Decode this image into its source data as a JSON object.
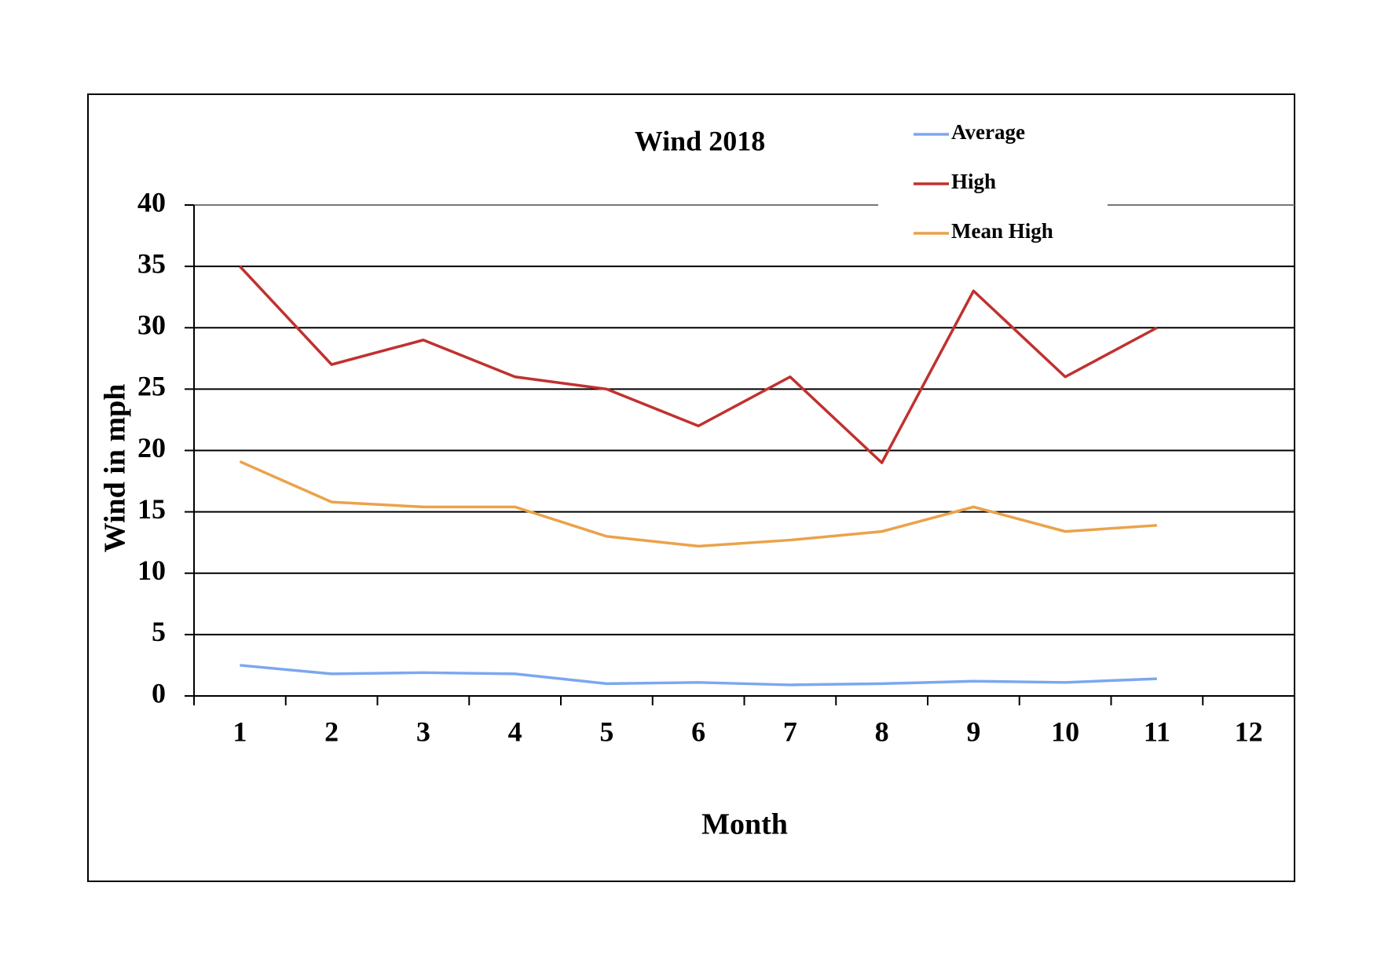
{
  "chart_data": {
    "type": "line",
    "title": "Wind 2018",
    "x_label": "Month",
    "y_label": "Wind in mph",
    "categories": [
      "1",
      "2",
      "3",
      "4",
      "5",
      "6",
      "7",
      "8",
      "9",
      "10",
      "11",
      "12"
    ],
    "series": [
      {
        "name": "Average",
        "color": "#7ba7f0",
        "values": [
          2.5,
          1.8,
          1.9,
          1.8,
          1.0,
          1.1,
          0.9,
          1.0,
          1.2,
          1.1,
          1.4,
          null
        ]
      },
      {
        "name": "High",
        "color": "#c0312f",
        "values": [
          35,
          27,
          29,
          26,
          25,
          22,
          26,
          19,
          33,
          26,
          30,
          null
        ]
      },
      {
        "name": "Mean High",
        "color": "#eba24a",
        "values": [
          19.1,
          15.8,
          15.4,
          15.4,
          13.0,
          12.2,
          12.7,
          13.4,
          15.4,
          13.4,
          13.9,
          null
        ]
      }
    ],
    "ylim": [
      0,
      40
    ],
    "yticks": [
      0,
      5,
      10,
      15,
      20,
      25,
      30,
      35,
      40
    ],
    "grid": true,
    "legend": "upper right"
  }
}
